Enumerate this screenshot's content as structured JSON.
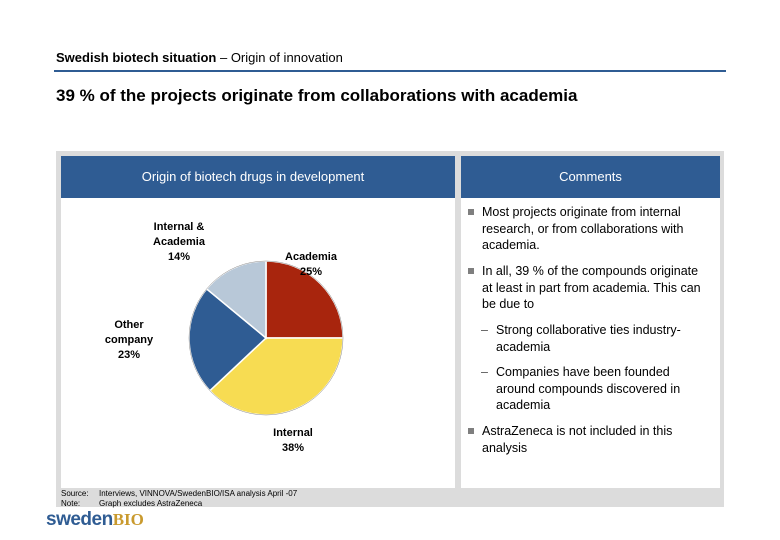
{
  "header": {
    "title_bold": "Swedish biotech situation",
    "title_rest": " – Origin of innovation"
  },
  "headline": "39 % of the projects originate from collaborations with academia",
  "left_panel": {
    "title": "Origin of biotech drugs in development"
  },
  "right_panel": {
    "title": "Comments"
  },
  "colors": {
    "header_blue": "#2f5c93",
    "academia": "#a8250d",
    "internal": "#f7dc52",
    "other_company": "#2f5c93",
    "internal_academia": "#b8c8d8"
  },
  "chart_data": {
    "type": "pie",
    "title": "Origin of biotech drugs in development",
    "slices": [
      {
        "label_lines": [
          "Academia"
        ],
        "value": 25,
        "value_label": "25%"
      },
      {
        "label_lines": [
          "Internal"
        ],
        "value": 38,
        "value_label": "38%"
      },
      {
        "label_lines": [
          "Other",
          "company"
        ],
        "value": 23,
        "value_label": "23%"
      },
      {
        "label_lines": [
          "Internal &",
          "Academia"
        ],
        "value": 14,
        "value_label": "14%"
      }
    ]
  },
  "comments": {
    "b1": "Most projects originate from internal research, or from collaborations with academia.",
    "b2": "In all, 39 % of the compounds originate at least in part from academia. This can be due to",
    "s1": "Strong collaborative ties industry-academia",
    "s2": "Companies have been founded around compounds discovered in academia",
    "b3": "AstraZeneca is not included in this analysis"
  },
  "footnotes": {
    "source_label": "Source:",
    "source_text": "Interviews, VINNOVA/SwedenBIO/ISA analysis April -07",
    "note_label": "Note:",
    "note_text": "Graph excludes AstraZeneca"
  },
  "logo": {
    "part1": "sweden",
    "part2": "BIO"
  }
}
